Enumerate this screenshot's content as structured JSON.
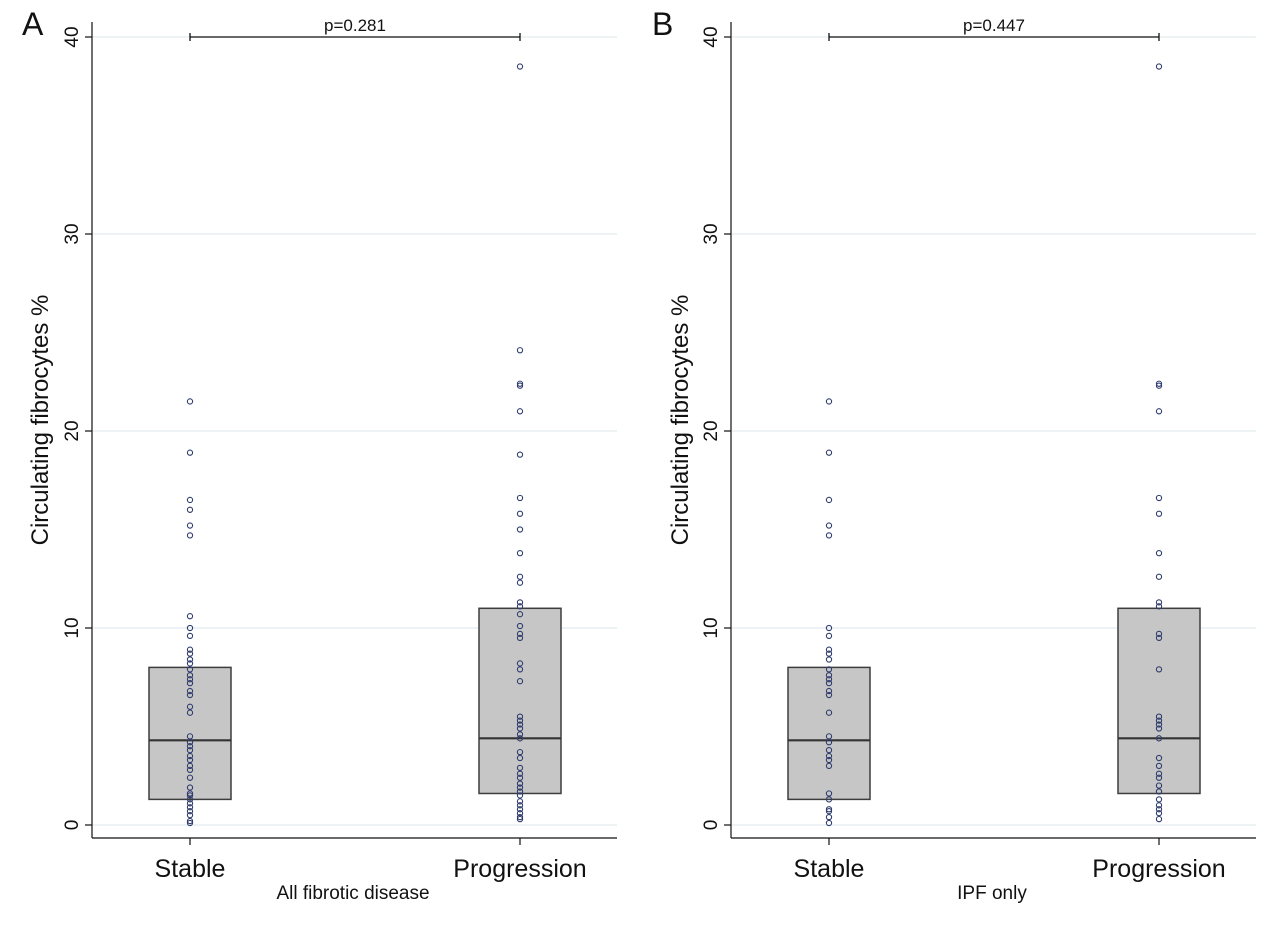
{
  "chart_data": [
    {
      "type": "box",
      "panel_label": "A",
      "title": "",
      "xlabel": "All fibrotic disease",
      "ylabel": "Circulating fibrocytes %",
      "ylim": [
        0,
        40
      ],
      "yticks": [
        0,
        10,
        20,
        30,
        40
      ],
      "grid": true,
      "categories": [
        "Stable",
        "Progression"
      ],
      "boxes": [
        {
          "category": "Stable",
          "q1": 1.3,
          "median": 4.3,
          "q3": 8.0
        },
        {
          "category": "Progression",
          "q1": 1.6,
          "median": 4.4,
          "q3": 11.0
        }
      ],
      "points": [
        {
          "category": "Stable",
          "values": [
            21.5,
            18.9,
            16.5,
            16.0,
            15.2,
            14.7,
            10.6,
            10.0,
            9.6,
            8.9,
            8.7,
            8.4,
            8.2,
            7.9,
            7.6,
            7.4,
            7.2,
            6.8,
            6.6,
            6.0,
            5.7,
            4.5,
            4.2,
            4.0,
            3.8,
            3.5,
            3.3,
            3.0,
            2.8,
            2.4,
            1.9,
            1.6,
            1.5,
            1.3,
            1.1,
            0.9,
            0.7,
            0.5,
            0.2,
            0.1
          ]
        },
        {
          "category": "Progression",
          "values": [
            38.5,
            24.1,
            22.4,
            22.3,
            21.0,
            18.8,
            16.6,
            15.8,
            15.0,
            13.8,
            12.6,
            12.3,
            11.3,
            11.1,
            10.7,
            10.1,
            9.7,
            9.5,
            8.2,
            7.9,
            7.3,
            5.5,
            5.3,
            5.1,
            4.9,
            4.6,
            4.4,
            3.7,
            3.4,
            2.9,
            2.6,
            2.4,
            2.1,
            1.9,
            1.7,
            1.5,
            1.2,
            1.0,
            0.8,
            0.6,
            0.4,
            0.3
          ]
        }
      ],
      "comparison": {
        "label": "p=0.281",
        "from": "Stable",
        "to": "Progression",
        "y": 40
      }
    },
    {
      "type": "box",
      "panel_label": "B",
      "title": "",
      "xlabel": "IPF only",
      "ylabel": "Circulating fibrocytes %",
      "ylim": [
        0,
        40
      ],
      "yticks": [
        0,
        10,
        20,
        30,
        40
      ],
      "grid": true,
      "categories": [
        "Stable",
        "Progression"
      ],
      "boxes": [
        {
          "category": "Stable",
          "q1": 1.3,
          "median": 4.3,
          "q3": 8.0
        },
        {
          "category": "Progression",
          "q1": 1.6,
          "median": 4.4,
          "q3": 11.0
        }
      ],
      "points": [
        {
          "category": "Stable",
          "values": [
            21.5,
            18.9,
            16.5,
            15.2,
            14.7,
            10.0,
            9.6,
            8.9,
            8.7,
            8.4,
            7.9,
            7.6,
            7.4,
            7.2,
            6.8,
            6.6,
            5.7,
            4.5,
            4.2,
            3.8,
            3.5,
            3.3,
            3.0,
            1.6,
            1.3,
            0.8,
            0.7,
            0.4,
            0.1
          ]
        },
        {
          "category": "Progression",
          "values": [
            38.5,
            22.4,
            22.3,
            21.0,
            16.6,
            15.8,
            13.8,
            12.6,
            11.3,
            11.1,
            9.7,
            9.5,
            7.9,
            5.5,
            5.3,
            5.1,
            4.9,
            4.4,
            3.4,
            3.0,
            2.6,
            2.4,
            2.0,
            1.7,
            1.3,
            1.0,
            0.8,
            0.6,
            0.3
          ]
        }
      ],
      "comparison": {
        "label": "p=0.447",
        "from": "Stable",
        "to": "Progression",
        "y": 40
      }
    }
  ],
  "colors": {
    "box_fill": "#c6c6c6",
    "box_stroke": "#3d3d3d",
    "median": "#333333",
    "point": "#2f3d6e",
    "grid": "#e2ecef",
    "axis": "#111111"
  }
}
